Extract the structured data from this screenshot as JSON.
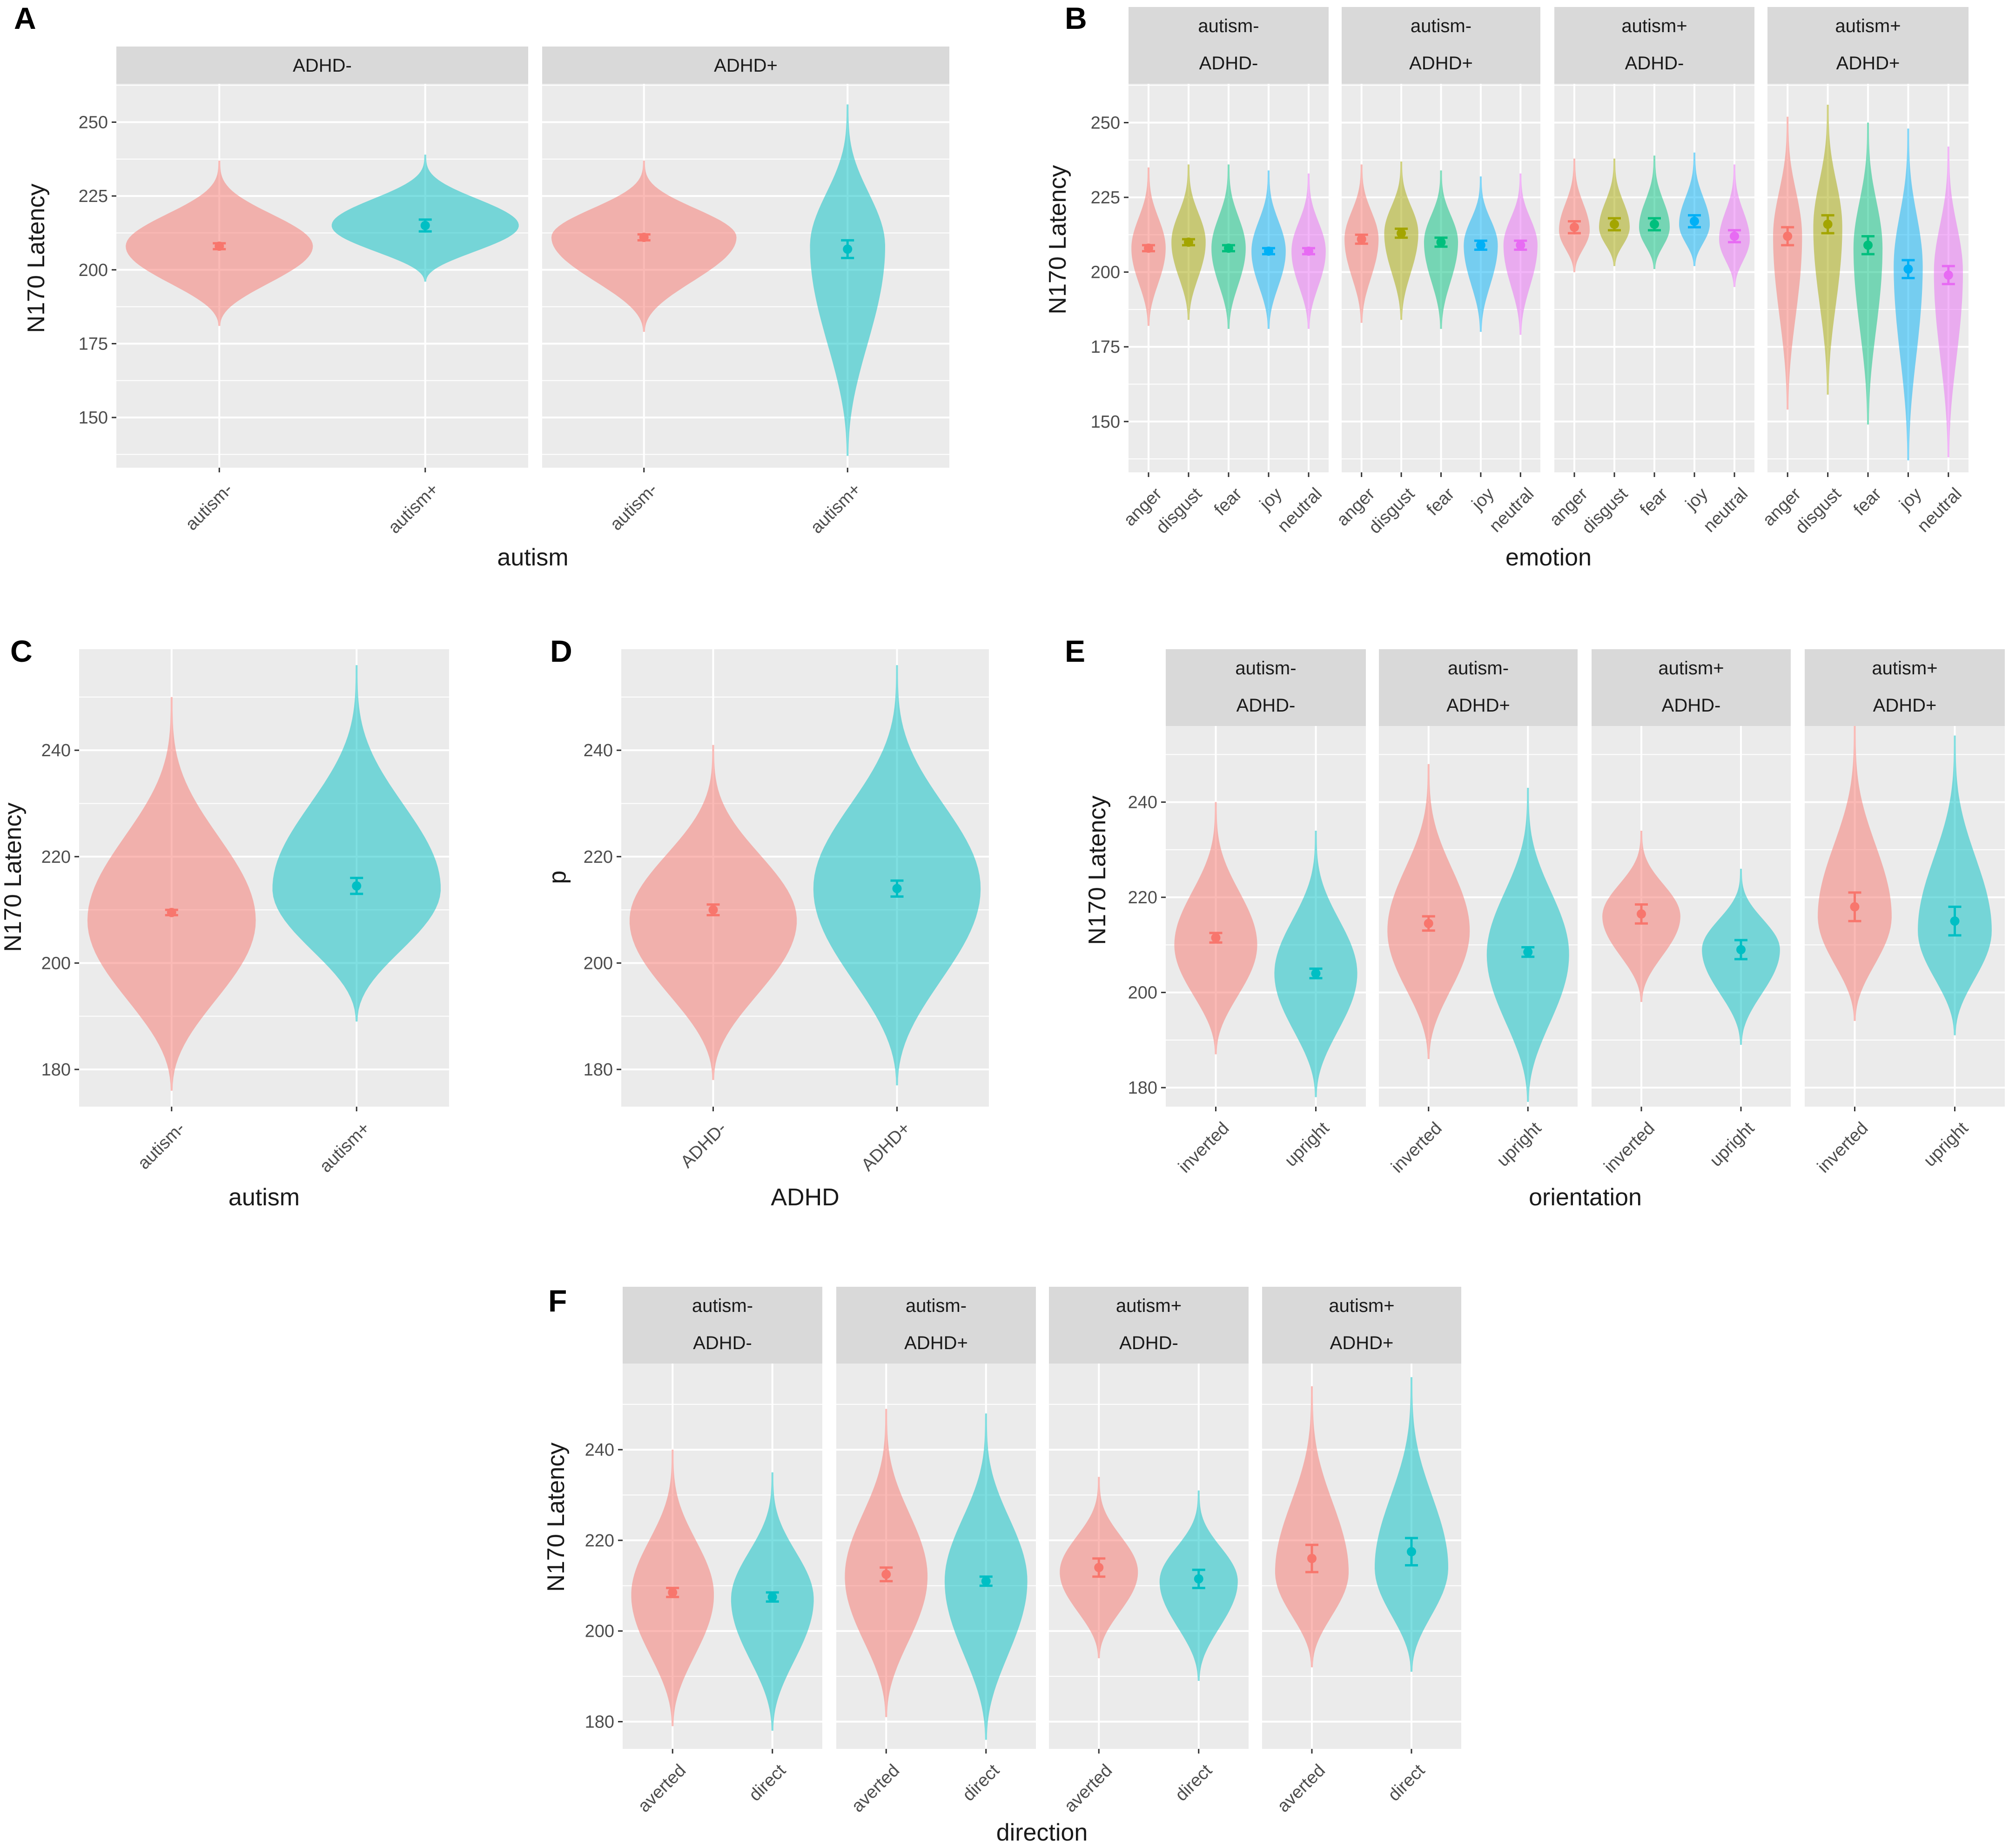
{
  "colors": {
    "panel_background": "#ebebeb",
    "strip_background": "#d9d9d9",
    "grid": "#ffffff",
    "autism_minus": "#F8766D",
    "autism_plus": "#00BFC4",
    "anger": "#F8766D",
    "disgust": "#A3A500",
    "fear": "#00BF7D",
    "joy": "#00B0F6",
    "neutral": "#E76BF3"
  },
  "chart_data": [
    {
      "id": "A",
      "label": "A",
      "type": "violin",
      "xlabel": "autism",
      "ylabel": "N170 Latency",
      "ylim": [
        133,
        263
      ],
      "yticks": [
        150,
        175,
        200,
        225,
        250
      ],
      "facets": [
        {
          "strip": [
            "ADHD-"
          ],
          "groups": [
            {
              "name": "autism-",
              "color": "autism_minus",
              "min": 181,
              "max": 237,
              "peak": 208,
              "width": 1.0,
              "mean": 208,
              "err": 1
            },
            {
              "name": "autism+",
              "color": "autism_plus",
              "min": 196,
              "max": 239,
              "peak": 215,
              "width": 1.0,
              "mean": 215,
              "err": 2
            }
          ]
        },
        {
          "strip": [
            "ADHD+"
          ],
          "groups": [
            {
              "name": "autism-",
              "color": "autism_minus",
              "min": 179,
              "max": 237,
              "peak": 211,
              "width": 1.0,
              "mean": 211,
              "err": 1
            },
            {
              "name": "autism+",
              "color": "autism_plus",
              "min": 137,
              "max": 256,
              "peak": 208,
              "width": 0.4,
              "mean": 207,
              "err": 3
            }
          ]
        }
      ]
    },
    {
      "id": "B",
      "label": "B",
      "type": "violin",
      "xlabel": "emotion",
      "ylabel": "N170 Latency",
      "ylim": [
        133,
        263
      ],
      "yticks": [
        150,
        175,
        200,
        225,
        250
      ],
      "facets": [
        {
          "strip": [
            "autism-",
            "ADHD-"
          ],
          "groups": [
            {
              "name": "anger",
              "color": "anger",
              "min": 182,
              "max": 235,
              "peak": 208,
              "width": 0.9,
              "mean": 208,
              "err": 1
            },
            {
              "name": "disgust",
              "color": "disgust",
              "min": 184,
              "max": 236,
              "peak": 210,
              "width": 0.9,
              "mean": 210,
              "err": 1
            },
            {
              "name": "fear",
              "color": "fear",
              "min": 181,
              "max": 236,
              "peak": 208,
              "width": 0.9,
              "mean": 208,
              "err": 1
            },
            {
              "name": "joy",
              "color": "joy",
              "min": 181,
              "max": 234,
              "peak": 207,
              "width": 0.9,
              "mean": 207,
              "err": 1
            },
            {
              "name": "neutral",
              "color": "neutral",
              "min": 181,
              "max": 233,
              "peak": 207,
              "width": 0.9,
              "mean": 207,
              "err": 1
            }
          ]
        },
        {
          "strip": [
            "autism-",
            "ADHD+"
          ],
          "groups": [
            {
              "name": "anger",
              "color": "anger",
              "min": 183,
              "max": 236,
              "peak": 211,
              "width": 0.9,
              "mean": 211,
              "err": 1.5
            },
            {
              "name": "disgust",
              "color": "disgust",
              "min": 184,
              "max": 237,
              "peak": 213,
              "width": 0.9,
              "mean": 213,
              "err": 1.5
            },
            {
              "name": "fear",
              "color": "fear",
              "min": 181,
              "max": 234,
              "peak": 210,
              "width": 0.9,
              "mean": 210,
              "err": 1.5
            },
            {
              "name": "joy",
              "color": "joy",
              "min": 180,
              "max": 232,
              "peak": 209,
              "width": 0.9,
              "mean": 209,
              "err": 1.5
            },
            {
              "name": "neutral",
              "color": "neutral",
              "min": 179,
              "max": 233,
              "peak": 209,
              "width": 0.9,
              "mean": 209,
              "err": 1.5
            }
          ]
        },
        {
          "strip": [
            "autism+",
            "ADHD-"
          ],
          "groups": [
            {
              "name": "anger",
              "color": "anger",
              "min": 200,
              "max": 238,
              "peak": 214,
              "width": 0.8,
              "mean": 215,
              "err": 2
            },
            {
              "name": "disgust",
              "color": "disgust",
              "min": 202,
              "max": 238,
              "peak": 215,
              "width": 0.8,
              "mean": 216,
              "err": 2
            },
            {
              "name": "fear",
              "color": "fear",
              "min": 201,
              "max": 239,
              "peak": 215,
              "width": 0.8,
              "mean": 216,
              "err": 2
            },
            {
              "name": "joy",
              "color": "joy",
              "min": 202,
              "max": 240,
              "peak": 216,
              "width": 0.8,
              "mean": 217,
              "err": 2
            },
            {
              "name": "neutral",
              "color": "neutral",
              "min": 195,
              "max": 236,
              "peak": 211,
              "width": 0.8,
              "mean": 212,
              "err": 2
            }
          ]
        },
        {
          "strip": [
            "autism+",
            "ADHD+"
          ],
          "groups": [
            {
              "name": "anger",
              "color": "anger",
              "min": 154,
              "max": 252,
              "peak": 212,
              "width": 0.75,
              "mean": 212,
              "err": 3
            },
            {
              "name": "disgust",
              "color": "disgust",
              "min": 159,
              "max": 256,
              "peak": 215,
              "width": 0.75,
              "mean": 216,
              "err": 3
            },
            {
              "name": "fear",
              "color": "fear",
              "min": 149,
              "max": 250,
              "peak": 208,
              "width": 0.75,
              "mean": 209,
              "err": 3
            },
            {
              "name": "joy",
              "color": "joy",
              "min": 137,
              "max": 248,
              "peak": 202,
              "width": 0.75,
              "mean": 201,
              "err": 3
            },
            {
              "name": "neutral",
              "color": "neutral",
              "min": 138,
              "max": 242,
              "peak": 200,
              "width": 0.75,
              "mean": 199,
              "err": 3
            }
          ]
        }
      ]
    },
    {
      "id": "C",
      "label": "C",
      "type": "violin",
      "xlabel": "autism",
      "ylabel": "N170 Latency",
      "ylim": [
        173,
        259
      ],
      "yticks": [
        180,
        200,
        220,
        240
      ],
      "facets": [
        {
          "strip": [],
          "groups": [
            {
              "name": "autism-",
              "color": "autism_minus",
              "min": 176,
              "max": 250,
              "peak": 208,
              "width": 1.0,
              "mean": 209.5,
              "err": 0.5
            },
            {
              "name": "autism+",
              "color": "autism_plus",
              "min": 189,
              "max": 256,
              "peak": 214,
              "width": 1.0,
              "mean": 214.5,
              "err": 1.5
            }
          ]
        }
      ]
    },
    {
      "id": "D",
      "label": "D",
      "type": "violin",
      "xlabel": "ADHD",
      "ylabel": "p",
      "ylim": [
        173,
        259
      ],
      "yticks": [
        180,
        200,
        220,
        240
      ],
      "facets": [
        {
          "strip": [],
          "groups": [
            {
              "name": "ADHD-",
              "color": "autism_minus",
              "min": 178,
              "max": 241,
              "peak": 208,
              "width": 1.0,
              "mean": 210,
              "err": 1
            },
            {
              "name": "ADHD+",
              "color": "autism_plus",
              "min": 177,
              "max": 256,
              "peak": 214,
              "width": 1.0,
              "mean": 214,
              "err": 1.5
            }
          ]
        }
      ]
    },
    {
      "id": "E",
      "label": "E",
      "type": "violin",
      "xlabel": "orientation",
      "ylabel": "N170 Latency",
      "ylim": [
        176,
        256
      ],
      "yticks": [
        180,
        200,
        220,
        240
      ],
      "facets": [
        {
          "strip": [
            "autism-",
            "ADHD-"
          ],
          "groups": [
            {
              "name": "inverted",
              "color": "autism_minus",
              "min": 187,
              "max": 240,
              "peak": 210,
              "width": 0.9,
              "mean": 211.5,
              "err": 1
            },
            {
              "name": "upright",
              "color": "autism_plus",
              "min": 178,
              "max": 234,
              "peak": 204,
              "width": 0.9,
              "mean": 204,
              "err": 1
            }
          ]
        },
        {
          "strip": [
            "autism-",
            "ADHD+"
          ],
          "groups": [
            {
              "name": "inverted",
              "color": "autism_minus",
              "min": 186,
              "max": 248,
              "peak": 213,
              "width": 0.9,
              "mean": 214.5,
              "err": 1.5
            },
            {
              "name": "upright",
              "color": "autism_plus",
              "min": 177,
              "max": 243,
              "peak": 208,
              "width": 0.9,
              "mean": 208.5,
              "err": 1
            }
          ]
        },
        {
          "strip": [
            "autism+",
            "ADHD-"
          ],
          "groups": [
            {
              "name": "inverted",
              "color": "autism_minus",
              "min": 198,
              "max": 234,
              "peak": 216,
              "width": 0.85,
              "mean": 216.5,
              "err": 2
            },
            {
              "name": "upright",
              "color": "autism_plus",
              "min": 189,
              "max": 226,
              "peak": 209,
              "width": 0.85,
              "mean": 209,
              "err": 2
            }
          ]
        },
        {
          "strip": [
            "autism+",
            "ADHD+"
          ],
          "groups": [
            {
              "name": "inverted",
              "color": "autism_minus",
              "min": 194,
              "max": 256,
              "peak": 216,
              "width": 0.8,
              "mean": 218,
              "err": 3
            },
            {
              "name": "upright",
              "color": "autism_plus",
              "min": 191,
              "max": 254,
              "peak": 213,
              "width": 0.8,
              "mean": 215,
              "err": 3
            }
          ]
        }
      ]
    },
    {
      "id": "F",
      "label": "F",
      "type": "violin",
      "xlabel": "direction",
      "ylabel": "N170 Latency",
      "ylim": [
        174,
        259
      ],
      "yticks": [
        180,
        200,
        220,
        240
      ],
      "facets": [
        {
          "strip": [
            "autism-",
            "ADHD-"
          ],
          "groups": [
            {
              "name": "averted",
              "color": "autism_minus",
              "min": 179,
              "max": 240,
              "peak": 208,
              "width": 0.9,
              "mean": 208.5,
              "err": 1
            },
            {
              "name": "direct",
              "color": "autism_plus",
              "min": 178,
              "max": 235,
              "peak": 207,
              "width": 0.9,
              "mean": 207.5,
              "err": 1
            }
          ]
        },
        {
          "strip": [
            "autism-",
            "ADHD+"
          ],
          "groups": [
            {
              "name": "averted",
              "color": "autism_minus",
              "min": 181,
              "max": 249,
              "peak": 212,
              "width": 0.9,
              "mean": 212.5,
              "err": 1.5
            },
            {
              "name": "direct",
              "color": "autism_plus",
              "min": 176,
              "max": 248,
              "peak": 211,
              "width": 0.9,
              "mean": 211,
              "err": 1
            }
          ]
        },
        {
          "strip": [
            "autism+",
            "ADHD-"
          ],
          "groups": [
            {
              "name": "averted",
              "color": "autism_minus",
              "min": 194,
              "max": 234,
              "peak": 213,
              "width": 0.85,
              "mean": 214,
              "err": 2
            },
            {
              "name": "direct",
              "color": "autism_plus",
              "min": 189,
              "max": 231,
              "peak": 211,
              "width": 0.85,
              "mean": 211.5,
              "err": 2
            }
          ]
        },
        {
          "strip": [
            "autism+",
            "ADHD+"
          ],
          "groups": [
            {
              "name": "averted",
              "color": "autism_minus",
              "min": 192,
              "max": 254,
              "peak": 213,
              "width": 0.8,
              "mean": 216,
              "err": 3
            },
            {
              "name": "direct",
              "color": "autism_plus",
              "min": 191,
              "max": 256,
              "peak": 214,
              "width": 0.8,
              "mean": 217.5,
              "err": 3
            }
          ]
        }
      ]
    }
  ]
}
